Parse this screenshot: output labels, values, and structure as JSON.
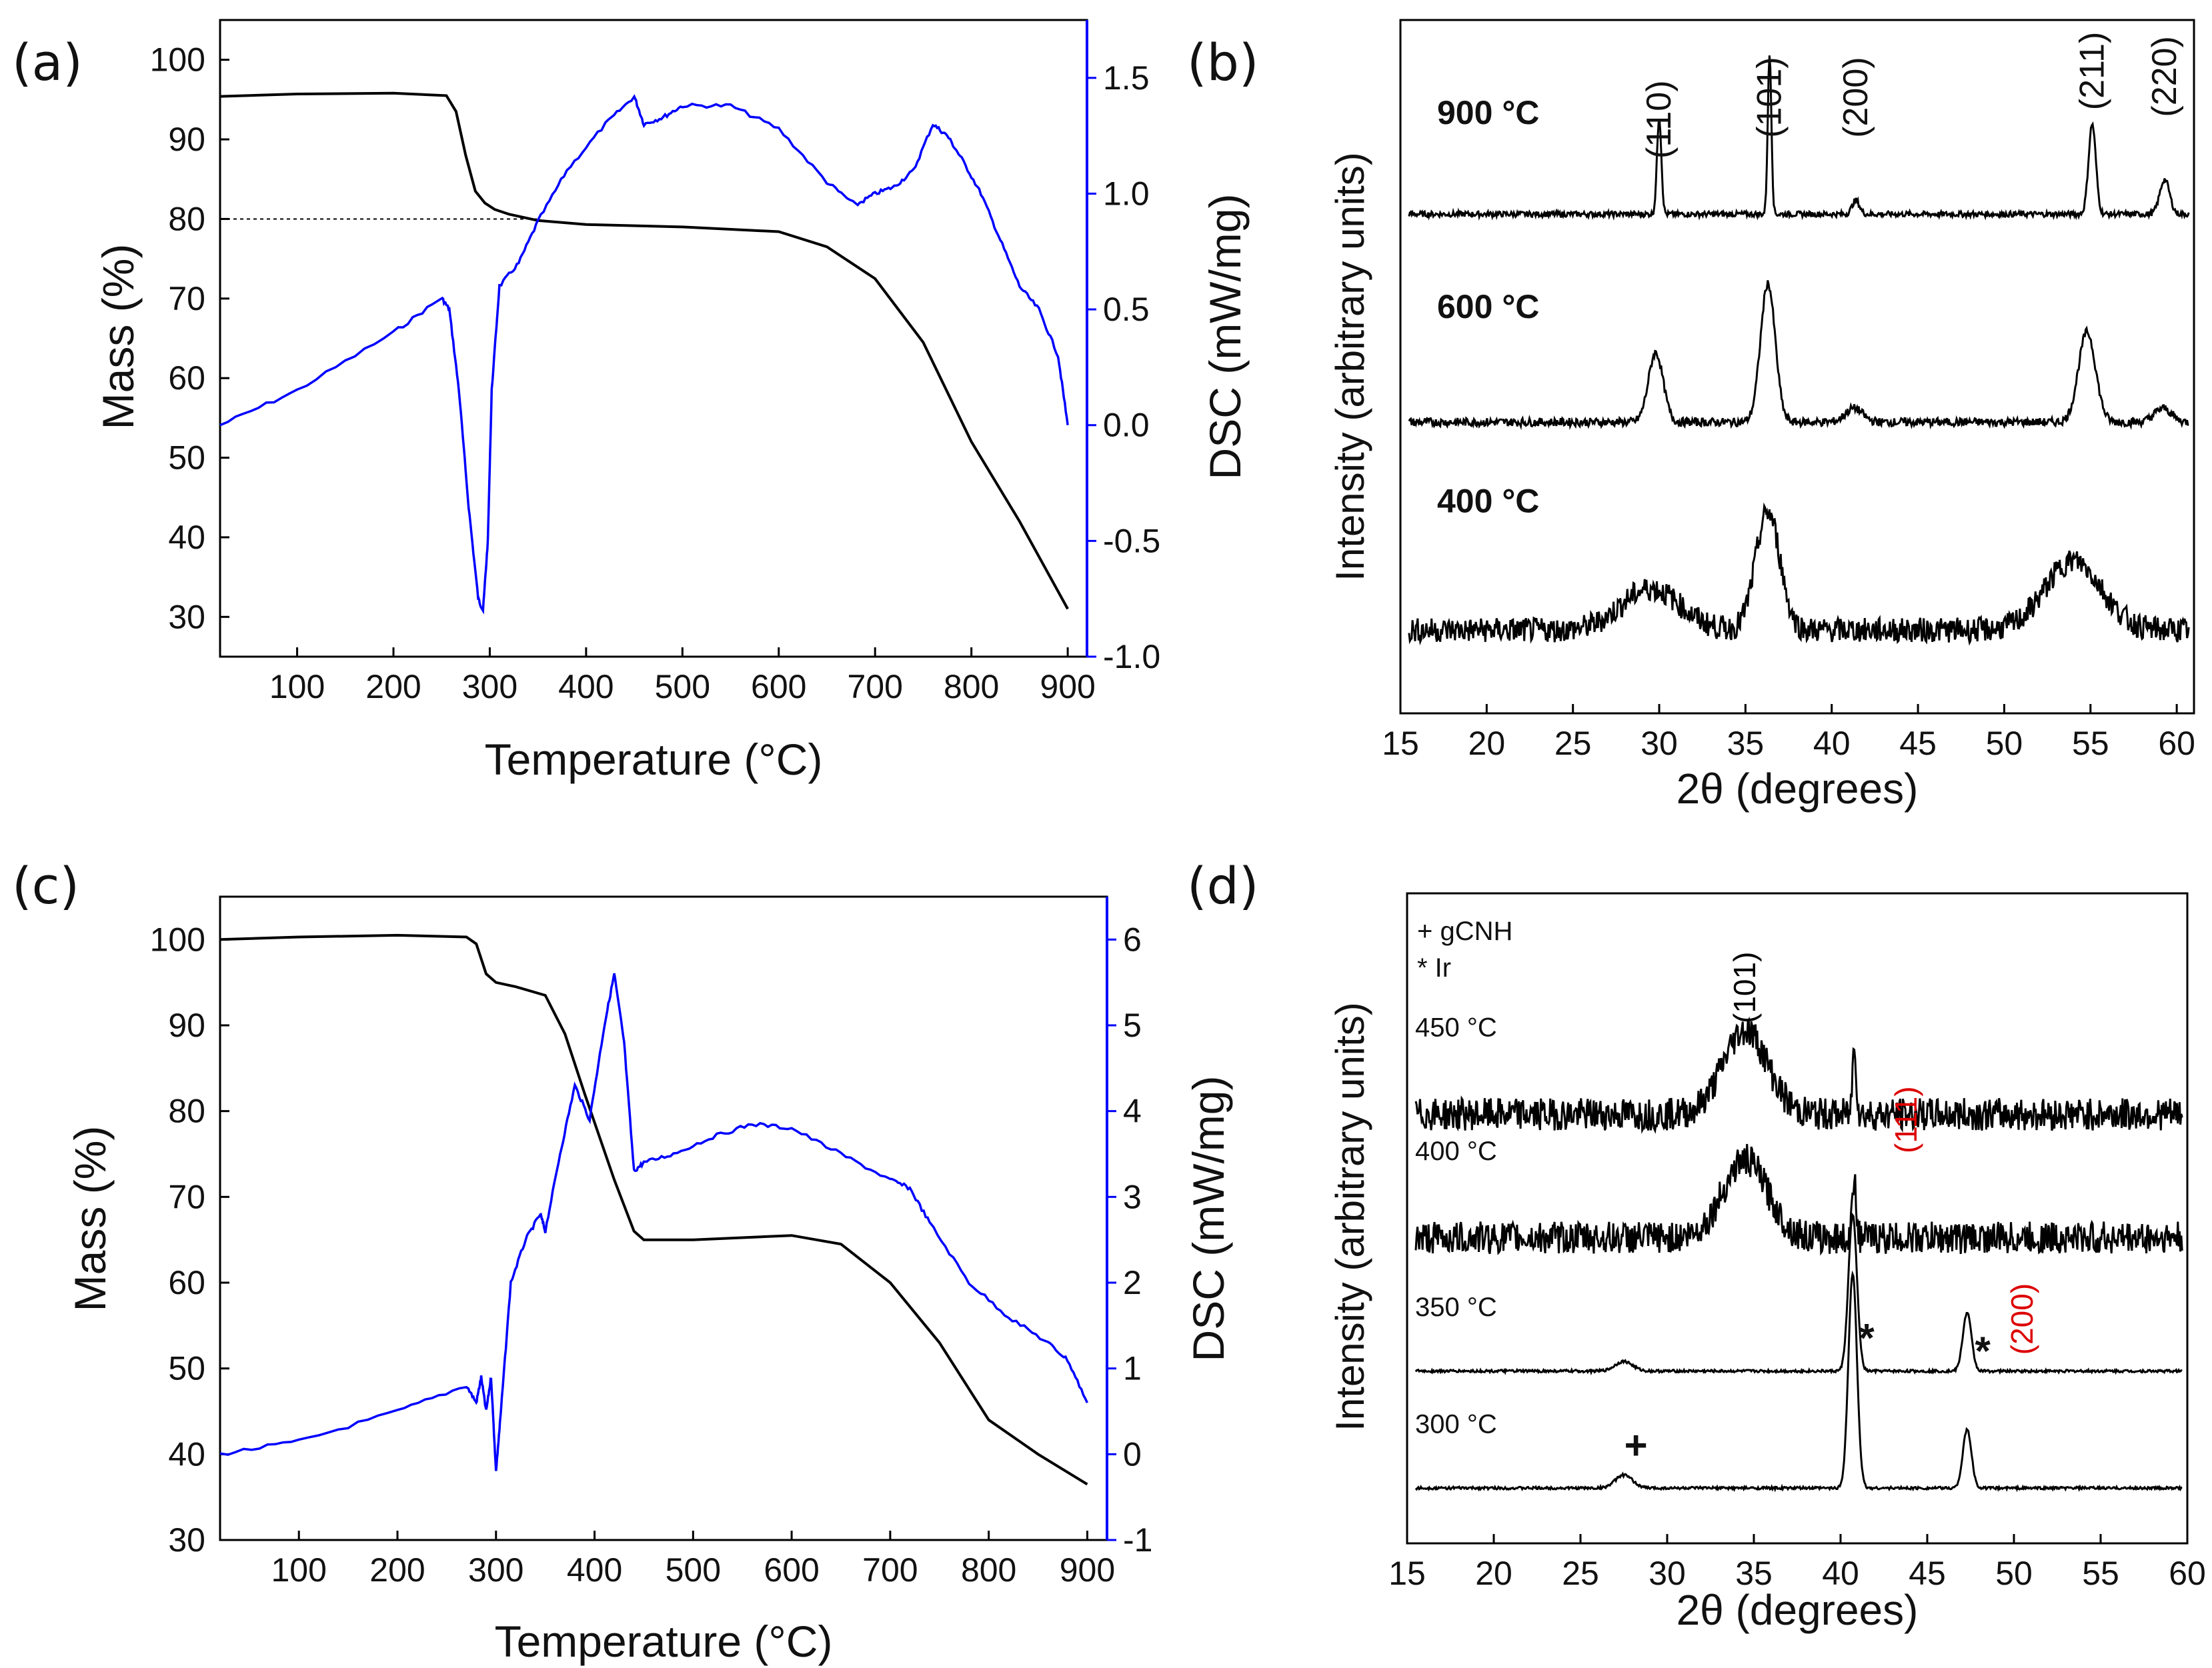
{
  "chart_data": [
    {
      "panel": "(a)",
      "type": "line",
      "xlabel": "Temperature (°C)",
      "ylabel": "Mass (%)",
      "ylabel_right": "DSC (mW/mg)",
      "xlim": [
        20,
        920
      ],
      "ylim": [
        25,
        105
      ],
      "ylim_right": [
        -1.0,
        1.75
      ],
      "xticks": [
        "100",
        "200",
        "300",
        "400",
        "500",
        "600",
        "700",
        "800",
        "900"
      ],
      "yticks": [
        "30",
        "40",
        "50",
        "60",
        "70",
        "80",
        "90",
        "100"
      ],
      "yticks_right": [
        "-1.0",
        "-0.5",
        "0.0",
        "0.5",
        "1.0",
        "1.5"
      ],
      "reference_line": {
        "y": 80,
        "x_from": 20,
        "x_to": 350
      },
      "series": [
        {
          "name": "Mass",
          "axis": "left",
          "color": "#000000",
          "x": [
            20,
            100,
            200,
            255,
            265,
            275,
            285,
            295,
            305,
            320,
            350,
            400,
            500,
            600,
            650,
            700,
            750,
            800,
            850,
            900
          ],
          "y": [
            95.4,
            95.7,
            95.8,
            95.5,
            93.5,
            88,
            83.5,
            82,
            81.2,
            80.6,
            79.8,
            79.3,
            79,
            78.4,
            76.5,
            72.5,
            64.5,
            52,
            42,
            31
          ]
        },
        {
          "name": "DSC",
          "axis": "right",
          "color": "#0000ff",
          "x": [
            20,
            100,
            200,
            250,
            258,
            268,
            278,
            288,
            293,
            298,
            302,
            310,
            330,
            350,
            380,
            420,
            450,
            460,
            480,
            500,
            550,
            600,
            650,
            680,
            700,
            720,
            740,
            760,
            775,
            790,
            810,
            830,
            850,
            870,
            890,
            900
          ],
          "y": [
            0.0,
            0.15,
            0.4,
            0.55,
            0.5,
            0.15,
            -0.35,
            -0.75,
            -0.8,
            -0.5,
            0.15,
            0.6,
            0.7,
            0.88,
            1.1,
            1.3,
            1.42,
            1.3,
            1.33,
            1.38,
            1.38,
            1.28,
            1.05,
            0.95,
            1.0,
            1.03,
            1.1,
            1.3,
            1.25,
            1.15,
            1.0,
            0.8,
            0.6,
            0.5,
            0.3,
            0.0
          ]
        }
      ]
    },
    {
      "panel": "(b)",
      "type": "line",
      "xlabel": "2θ (degrees)",
      "ylabel": "Intensity (arbitrary units)",
      "xlim": [
        15,
        61
      ],
      "xticks": [
        "15",
        "20",
        "25",
        "30",
        "35",
        "40",
        "45",
        "50",
        "55",
        "60"
      ],
      "peak_labels": [
        "(110)",
        "(101)",
        "(200)",
        "(211)",
        "(220)"
      ],
      "peak_positions": [
        30.0,
        36.4,
        41.4,
        55.1,
        59.3
      ],
      "series": [
        {
          "name": "900 °C",
          "baseline": 0.72,
          "peaks": [
            [
              30.0,
              0.14,
              0.18
            ],
            [
              36.4,
              0.23,
              0.15
            ],
            [
              41.4,
              0.02,
              0.3
            ],
            [
              55.1,
              0.13,
              0.3
            ],
            [
              59.3,
              0.05,
              0.4
            ]
          ],
          "noise": 0.004
        },
        {
          "name": "600 °C",
          "baseline": 0.42,
          "peaks": [
            [
              29.8,
              0.1,
              0.6
            ],
            [
              36.3,
              0.2,
              0.6
            ],
            [
              41.3,
              0.02,
              0.7
            ],
            [
              54.8,
              0.13,
              0.7
            ],
            [
              59.2,
              0.02,
              0.7
            ]
          ],
          "noise": 0.006
        },
        {
          "name": "400 °C",
          "baseline": 0.12,
          "peaks": [
            [
              29.5,
              0.06,
              2.4
            ],
            [
              36.3,
              0.17,
              1.0
            ],
            [
              54,
              0.1,
              2.3
            ]
          ],
          "noise": 0.018
        }
      ]
    },
    {
      "panel": "(c)",
      "type": "line",
      "xlabel": "Temperature (°C)",
      "ylabel": "Mass (%)",
      "ylabel_right": "DSC (mW/mg)",
      "xlim": [
        20,
        920
      ],
      "ylim": [
        30,
        105
      ],
      "ylim_right": [
        -1,
        6.5
      ],
      "xticks": [
        "100",
        "200",
        "300",
        "400",
        "500",
        "600",
        "700",
        "800",
        "900"
      ],
      "yticks": [
        "30",
        "40",
        "50",
        "60",
        "70",
        "80",
        "90",
        "100"
      ],
      "yticks_right": [
        "-1",
        "0",
        "1",
        "2",
        "3",
        "4",
        "5",
        "6"
      ],
      "series": [
        {
          "name": "Mass",
          "axis": "left",
          "color": "#000000",
          "x": [
            20,
            100,
            200,
            270,
            280,
            290,
            300,
            320,
            350,
            370,
            390,
            420,
            440,
            450,
            500,
            600,
            650,
            700,
            750,
            800,
            850,
            900
          ],
          "y": [
            100,
            100.3,
            100.5,
            100.3,
            99.5,
            96,
            95,
            94.5,
            93.5,
            89,
            82,
            72,
            66,
            65,
            65,
            65.5,
            64.5,
            60,
            53,
            44,
            40,
            36.5
          ]
        },
        {
          "name": "DSC",
          "axis": "right",
          "color": "#0000ff",
          "x": [
            20,
            100,
            200,
            270,
            280,
            285,
            290,
            295,
            300,
            305,
            315,
            330,
            345,
            350,
            365,
            380,
            395,
            410,
            420,
            430,
            440,
            450,
            480,
            520,
            560,
            600,
            650,
            700,
            720,
            740,
            780,
            820,
            860,
            880,
            900
          ],
          "y": [
            0,
            0.15,
            0.5,
            0.8,
            0.6,
            0.9,
            0.5,
            0.9,
            -0.2,
            0.5,
            2.0,
            2.5,
            2.8,
            2.6,
            3.5,
            4.3,
            3.9,
            5.0,
            5.6,
            4.8,
            3.3,
            3.4,
            3.5,
            3.7,
            3.85,
            3.8,
            3.5,
            3.2,
            3.1,
            2.7,
            2.0,
            1.6,
            1.3,
            1.1,
            0.6
          ]
        }
      ]
    },
    {
      "panel": "(d)",
      "type": "line",
      "xlabel": "2θ (degrees)",
      "ylabel": "Intensity (arbitrary units)",
      "xlim": [
        15,
        60
      ],
      "xticks": [
        "15",
        "20",
        "25",
        "30",
        "35",
        "40",
        "45",
        "50",
        "55",
        "60"
      ],
      "legend": [
        "+ gCNH",
        "* Ir"
      ],
      "peak_labels": [
        {
          "text": "(101)",
          "x": 34.5,
          "color": "#000000"
        },
        {
          "text": "(111)",
          "x": 43.8,
          "color": "#dd0000"
        },
        {
          "text": "(200)",
          "x": 50.5,
          "color": "#dd0000"
        }
      ],
      "markers": [
        {
          "symbol": "+",
          "x": 28.2
        },
        {
          "symbol": "*",
          "x": 41.5
        },
        {
          "symbol": "*",
          "x": 48.2
        }
      ],
      "series": [
        {
          "name": "450 °C",
          "baseline": 0.66,
          "peaks": [
            [
              34.5,
              0.13,
              1.8
            ],
            [
              40.8,
              0.11,
              0.15
            ]
          ],
          "noise": 0.025
        },
        {
          "name": "400 °C",
          "baseline": 0.47,
          "peaks": [
            [
              34.5,
              0.12,
              1.8
            ],
            [
              40.8,
              0.1,
              0.15
            ]
          ],
          "noise": 0.025
        },
        {
          "name": "350 °C",
          "baseline": 0.265,
          "peaks": [
            [
              27.5,
              0.015,
              0.7
            ],
            [
              40.7,
              0.24,
              0.35
            ],
            [
              47.3,
              0.09,
              0.35
            ]
          ],
          "noise": 0.002
        },
        {
          "name": "300 °C",
          "baseline": 0.085,
          "peaks": [
            [
              27.5,
              0.02,
              0.7
            ],
            [
              40.7,
              0.33,
              0.35
            ],
            [
              47.3,
              0.09,
              0.35
            ]
          ],
          "noise": 0.002
        }
      ]
    }
  ]
}
